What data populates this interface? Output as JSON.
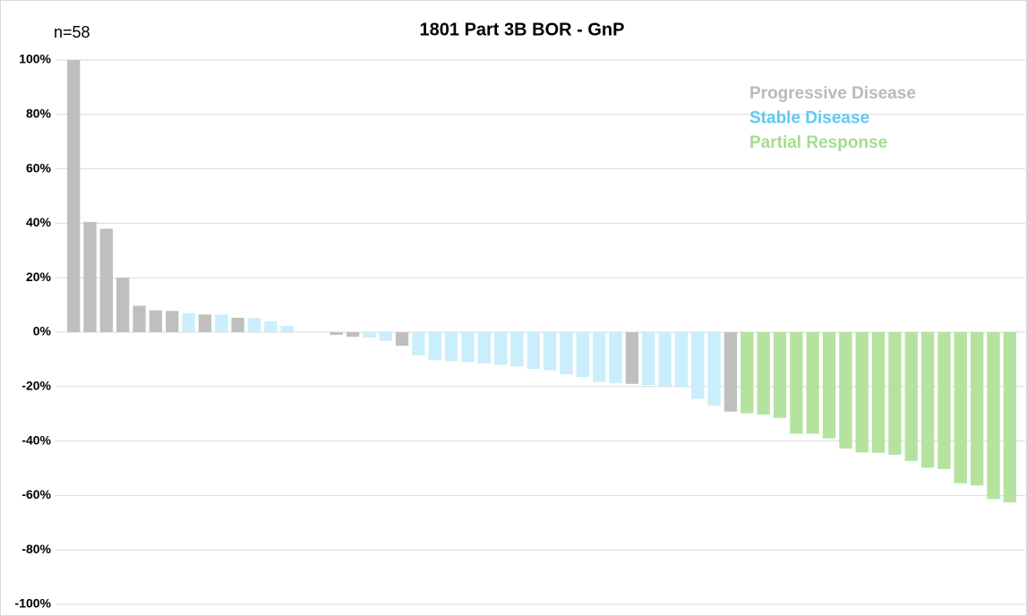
{
  "chart_data": {
    "type": "waterfall",
    "title": "1801 Part 3B BOR - GnP",
    "annotation": "n=58",
    "values": [
      100,
      40.5,
      38,
      20,
      9.7,
      8,
      7.8,
      7,
      6.5,
      6.5,
      5.3,
      5.2,
      4,
      2.3,
      0,
      0,
      -1,
      -1.7,
      -2,
      -3.2,
      -5,
      -8.5,
      -10.3,
      -10.7,
      -11,
      -11.5,
      -12,
      -12.6,
      -13.5,
      -14,
      -15.5,
      -16.5,
      -18.3,
      -18.7,
      -19,
      -19.5,
      -19.8,
      -20.2,
      -24.5,
      -27,
      -29.2,
      -29.8,
      -30.3,
      -31.5,
      -37.3,
      -37.3,
      -39,
      -42.8,
      -44.2,
      -44.3,
      -45,
      -47.3,
      -49.8,
      -50.3,
      -55.5,
      -56.3,
      -61.3,
      -62.5
    ],
    "colors": [
      "#bfbfbf",
      "#bfbfbf",
      "#bfbfbf",
      "#bfbfbf",
      "#bfbfbf",
      "#bfbfbf",
      "#bfbfbf",
      "#caeefb",
      "#bfbfbf",
      "#caeefb",
      "#bfbfbf",
      "#caeefb",
      "#caeefb",
      "#caeefb",
      "#caeefb",
      "#caeefb",
      "#bfbfbf",
      "#bfbfbf",
      "#caeefb",
      "#caeefb",
      "#bfbfbf",
      "#caeefb",
      "#caeefb",
      "#caeefb",
      "#caeefb",
      "#caeefb",
      "#caeefb",
      "#caeefb",
      "#caeefb",
      "#caeefb",
      "#caeefb",
      "#caeefb",
      "#caeefb",
      "#caeefb",
      "#bfbfbf",
      "#caeefb",
      "#caeefb",
      "#caeefb",
      "#caeefb",
      "#caeefb",
      "#bfbfbf",
      "#b4e3a0",
      "#b4e3a0",
      "#b4e3a0",
      "#b4e3a0",
      "#b4e3a0",
      "#b4e3a0",
      "#b4e3a0",
      "#b4e3a0",
      "#b4e3a0",
      "#b4e3a0",
      "#b4e3a0",
      "#b4e3a0",
      "#b4e3a0",
      "#b4e3a0",
      "#b4e3a0",
      "#b4e3a0",
      "#b4e3a0"
    ],
    "legend": [
      {
        "name": "Progressive Disease",
        "color": "#bababa"
      },
      {
        "name": "Stable Disease",
        "color": "#5ec9f1"
      },
      {
        "name": "Partial Response",
        "color": "#a6dc8e"
      }
    ],
    "ylim": [
      -100,
      100
    ],
    "yticks": [
      {
        "value": 100,
        "label": "100%"
      },
      {
        "value": 80,
        "label": "80%"
      },
      {
        "value": 60,
        "label": "60%"
      },
      {
        "value": 40,
        "label": "40%"
      },
      {
        "value": 20,
        "label": "20%"
      },
      {
        "value": 0,
        "label": "0%"
      },
      {
        "value": -20,
        "label": "-20%"
      },
      {
        "value": -40,
        "label": "-40%"
      },
      {
        "value": -60,
        "label": "-60%"
      },
      {
        "value": -80,
        "label": "-80%"
      },
      {
        "value": -100,
        "label": "-100%"
      }
    ],
    "grid": true
  }
}
